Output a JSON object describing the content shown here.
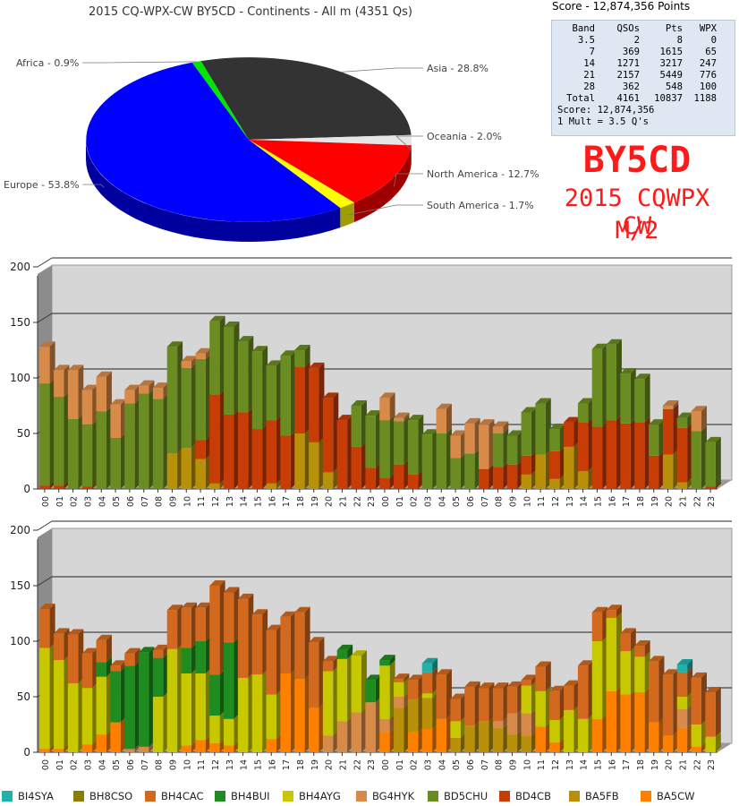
{
  "pie": {
    "title": "2015 CQ-WPX-CW BY5CD - Continents - All m (4351 Qs)",
    "chart_data": {
      "type": "pie",
      "title": "2015 CQ-WPX-CW BY5CD - Continents - All m (4351 Qs)",
      "slices": [
        {
          "label": "Asia - 28.8%",
          "value": 28.8,
          "color": "#333333"
        },
        {
          "label": "Oceania - 2.0%",
          "value": 2.0,
          "color": "#e6e6e6"
        },
        {
          "label": "North America - 12.7%",
          "value": 12.7,
          "color": "#ff0000"
        },
        {
          "label": "South America - 1.7%",
          "value": 1.7,
          "color": "#ffff00"
        },
        {
          "label": "Europe - 53.8%",
          "value": 53.8,
          "color": "#0000ff"
        },
        {
          "label": "Africa - 0.9%",
          "value": 0.9,
          "color": "#00e600"
        }
      ]
    }
  },
  "score": {
    "header": "Score - 12,874,356 Points",
    "columns": [
      "Band",
      "QSOs",
      "Pts",
      "WPX"
    ],
    "rows": [
      [
        "3.5",
        "2",
        "8",
        "0"
      ],
      [
        "7",
        "369",
        "1615",
        "65"
      ],
      [
        "14",
        "1271",
        "3217",
        "247"
      ],
      [
        "21",
        "2157",
        "5449",
        "776"
      ],
      [
        "28",
        "362",
        "548",
        "100"
      ],
      [
        "Total",
        "4161",
        "10837",
        "1188"
      ]
    ],
    "score_line": "Score: 12,874,356",
    "mult_line": "1 Mult = 3.5 Q's"
  },
  "banner": {
    "callsign": "BY5CD",
    "contest": "2015 CQWPX CW",
    "mode": "M/2"
  },
  "chart_data": [
    {
      "type": "bar",
      "stacked": true,
      "ylim": [
        0,
        200
      ],
      "yticks": [
        "0",
        "50",
        "100",
        "150",
        "200"
      ],
      "categories": [
        "00",
        "01",
        "02",
        "03",
        "04",
        "05",
        "06",
        "07",
        "08",
        "09",
        "10",
        "11",
        "12",
        "13",
        "14",
        "15",
        "16",
        "17",
        "18",
        "19",
        "20",
        "21",
        "22",
        "23",
        "00",
        "01",
        "02",
        "03",
        "04",
        "05",
        "06",
        "07",
        "08",
        "09",
        "10",
        "11",
        "12",
        "13",
        "14",
        "15",
        "16",
        "17",
        "18",
        "19",
        "20",
        "21",
        "22",
        "23"
      ],
      "series": [
        {
          "name": "BA5FB",
          "color": "#b8900a",
          "values": [
            0,
            0,
            0,
            0,
            0,
            0,
            0,
            0,
            0,
            32,
            37,
            27,
            5,
            0,
            0,
            0,
            5,
            0,
            50,
            42,
            15,
            0,
            0,
            0,
            0,
            0,
            0,
            0,
            0,
            0,
            0,
            0,
            0,
            0,
            13,
            31,
            9,
            38,
            16,
            0,
            0,
            0,
            0,
            0,
            31,
            6,
            0,
            0
          ]
        },
        {
          "name": "BD4CB",
          "color": "#c83c06",
          "values": [
            3,
            3,
            0,
            2,
            0,
            0,
            0,
            0,
            0,
            0,
            0,
            17,
            80,
            67,
            69,
            54,
            57,
            48,
            60,
            67,
            67,
            62,
            38,
            19,
            10,
            22,
            13,
            0,
            0,
            0,
            0,
            18,
            20,
            22,
            17,
            0,
            25,
            22,
            44,
            56,
            62,
            59,
            60,
            30,
            41,
            49,
            0,
            2
          ]
        },
        {
          "name": "BD5CHU",
          "color": "#6b8c21",
          "values": [
            92,
            80,
            63,
            56,
            70,
            46,
            77,
            86,
            81,
            96,
            72,
            73,
            66,
            79,
            64,
            70,
            49,
            72,
            15,
            0,
            0,
            0,
            37,
            47,
            52,
            39,
            49,
            49,
            50,
            28,
            32,
            0,
            30,
            26,
            39,
            46,
            20,
            0,
            17,
            70,
            68,
            45,
            39,
            28,
            0,
            9,
            52,
            40
          ]
        },
        {
          "name": "BG4HYK",
          "color": "#d88a48",
          "values": [
            33,
            24,
            44,
            31,
            31,
            30,
            12,
            7,
            10,
            0,
            6,
            5,
            0,
            0,
            0,
            0,
            0,
            0,
            0,
            0,
            0,
            0,
            0,
            0,
            20,
            3,
            0,
            0,
            22,
            20,
            27,
            40,
            6,
            0,
            0,
            0,
            0,
            0,
            0,
            0,
            0,
            0,
            0,
            0,
            3,
            0,
            18,
            0
          ]
        }
      ]
    },
    {
      "type": "bar",
      "stacked": true,
      "ylim": [
        0,
        200
      ],
      "yticks": [
        "0",
        "50",
        "100",
        "150",
        "200"
      ],
      "categories": [
        "00",
        "01",
        "02",
        "03",
        "04",
        "05",
        "06",
        "07",
        "08",
        "09",
        "10",
        "11",
        "12",
        "13",
        "14",
        "15",
        "16",
        "17",
        "18",
        "19",
        "20",
        "21",
        "22",
        "23",
        "00",
        "01",
        "02",
        "03",
        "04",
        "05",
        "06",
        "07",
        "08",
        "09",
        "10",
        "11",
        "12",
        "13",
        "14",
        "15",
        "16",
        "17",
        "18",
        "19",
        "20",
        "21",
        "22",
        "23"
      ],
      "series": [
        {
          "name": "BA5CW",
          "color": "#ff8000",
          "values": [
            3,
            3,
            0,
            7,
            16,
            27,
            0,
            0,
            0,
            0,
            6,
            11,
            8,
            6,
            0,
            0,
            12,
            71,
            66,
            40,
            0,
            0,
            0,
            0,
            18,
            0,
            18,
            21,
            30,
            0,
            0,
            0,
            0,
            0,
            0,
            23,
            9,
            0,
            0,
            30,
            55,
            52,
            54,
            27,
            15,
            22,
            5,
            0
          ]
        },
        {
          "name": "BA5FB",
          "color": "#b8900a",
          "values": [
            0,
            0,
            0,
            0,
            0,
            0,
            0,
            0,
            0,
            0,
            0,
            0,
            0,
            0,
            0,
            0,
            0,
            0,
            0,
            0,
            0,
            0,
            0,
            0,
            0,
            40,
            30,
            28,
            0,
            13,
            24,
            28,
            22,
            16,
            15,
            0,
            0,
            0,
            0,
            0,
            0,
            0,
            0,
            0,
            0,
            0,
            0,
            0
          ]
        },
        {
          "name": "BG4HYK",
          "color": "#d88a48",
          "values": [
            0,
            0,
            0,
            0,
            0,
            0,
            3,
            5,
            0,
            0,
            0,
            0,
            0,
            0,
            0,
            0,
            0,
            0,
            0,
            0,
            15,
            28,
            36,
            45,
            12,
            10,
            0,
            0,
            0,
            0,
            0,
            0,
            6,
            19,
            20,
            0,
            0,
            0,
            0,
            0,
            0,
            0,
            0,
            0,
            0,
            17,
            0,
            0
          ]
        },
        {
          "name": "BH4AYG",
          "color": "#c8c800",
          "values": [
            91,
            80,
            62,
            51,
            52,
            0,
            0,
            0,
            50,
            93,
            65,
            60,
            25,
            24,
            67,
            70,
            40,
            0,
            0,
            0,
            58,
            56,
            51,
            0,
            48,
            13,
            0,
            4,
            0,
            15,
            0,
            0,
            0,
            0,
            25,
            32,
            20,
            38,
            30,
            70,
            66,
            39,
            32,
            0,
            0,
            11,
            20,
            14
          ]
        },
        {
          "name": "BH4BUI",
          "color": "#1e8c1e",
          "values": [
            0,
            0,
            0,
            0,
            13,
            46,
            75,
            85,
            35,
            0,
            23,
            29,
            37,
            69,
            0,
            0,
            0,
            0,
            0,
            0,
            0,
            8,
            0,
            20,
            5,
            0,
            0,
            0,
            0,
            0,
            0,
            0,
            0,
            0,
            0,
            0,
            0,
            0,
            0,
            0,
            0,
            0,
            0,
            0,
            0,
            0,
            0,
            0
          ]
        },
        {
          "name": "BH4CAC",
          "color": "#d2691e",
          "values": [
            35,
            24,
            44,
            31,
            20,
            5,
            11,
            0,
            7,
            35,
            36,
            30,
            80,
            45,
            71,
            54,
            58,
            51,
            60,
            59,
            9,
            0,
            0,
            0,
            0,
            3,
            17,
            19,
            40,
            20,
            35,
            30,
            30,
            24,
            5,
            22,
            26,
            22,
            48,
            26,
            7,
            16,
            10,
            55,
            55,
            22,
            42,
            40
          ]
        },
        {
          "name": "BI4SYA",
          "color": "#20b2aa",
          "values": [
            0,
            0,
            0,
            0,
            0,
            0,
            0,
            0,
            0,
            0,
            0,
            0,
            0,
            0,
            0,
            0,
            0,
            0,
            0,
            0,
            0,
            0,
            0,
            0,
            0,
            0,
            0,
            8,
            0,
            0,
            0,
            0,
            0,
            0,
            0,
            0,
            0,
            0,
            0,
            0,
            0,
            0,
            0,
            0,
            0,
            7,
            0,
            0
          ]
        }
      ]
    }
  ],
  "legend": {
    "items": [
      {
        "label": "BI4SYA",
        "color": "#20b2aa"
      },
      {
        "label": "BH8CSO",
        "color": "#8a7d00"
      },
      {
        "label": "BH4CAC",
        "color": "#d2691e"
      },
      {
        "label": "BH4BUI",
        "color": "#1e8c1e"
      },
      {
        "label": "BH4AYG",
        "color": "#c8c800"
      },
      {
        "label": "BG4HYK",
        "color": "#d88a48"
      },
      {
        "label": "BD5CHU",
        "color": "#6b8c21"
      },
      {
        "label": "BD4CB",
        "color": "#c83c06"
      },
      {
        "label": "BA5FB",
        "color": "#b8900a"
      },
      {
        "label": "BA5CW",
        "color": "#ff8000"
      }
    ]
  }
}
